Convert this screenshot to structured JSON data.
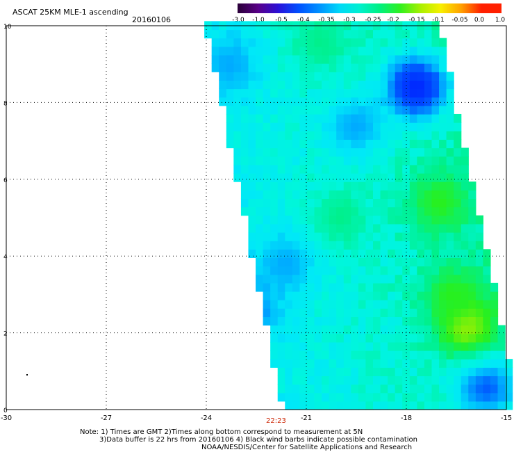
{
  "header": {
    "title": "ASCAT 25KM MLE-1 ascending",
    "date": "20160106"
  },
  "colorbar": {
    "labels": [
      "-3.0",
      "-1.0",
      "-0.5",
      "-0.4",
      "-0.35",
      "-0.3",
      "-0.25",
      "-0.2",
      "-0.15",
      "-0.1",
      "-0.05",
      "0.0",
      "1.0"
    ],
    "colors": [
      "#2a0038",
      "#5a0088",
      "#2a10d8",
      "#0050ff",
      "#0090ff",
      "#00d8f8",
      "#00f0d0",
      "#00f080",
      "#30f020",
      "#a8f000",
      "#f8f000",
      "#ffa000",
      "#ff2000"
    ]
  },
  "footer": {
    "time_label": "22:23",
    "time_color": "#cc2200",
    "note_line1": "Note: 1) Times are GMT 2)Times along bottom correspond to measurement at 5N",
    "note_line2": "3)Data buffer is 22 hrs from 20160106 4) Black wind barbs indicate possible contamination",
    "credit": "NOAA/NESDIS/Center for Satellite Applications and Research"
  },
  "chart_data": {
    "type": "heatmap",
    "x_ticks": [
      "-30",
      "-27",
      "-24",
      "-21",
      "-18",
      "-15"
    ],
    "y_ticks": [
      "0",
      "2",
      "4",
      "6",
      "8",
      "10"
    ],
    "xlim": [
      -30,
      -15
    ],
    "ylim": [
      0,
      10
    ],
    "swath": {
      "description_values": "MLE-1 values over an ascending swath",
      "top_edge_lon": [
        -24.0,
        -17.0
      ],
      "bottom_edge_lon": [
        -21.7,
        -14.6
      ],
      "dominant_value_range": [
        -0.35,
        -0.2
      ],
      "low_patches": [
        {
          "lon": -17.7,
          "lat": 8.4,
          "value": -0.5
        },
        {
          "lon": -22.8,
          "lat": 2.6,
          "value": -0.4
        },
        {
          "lon": -15.6,
          "lat": 0.6,
          "value": -0.4
        },
        {
          "lon": -23.3,
          "lat": 9.0,
          "value": -0.35
        },
        {
          "lon": -19.5,
          "lat": 7.4,
          "value": -0.35
        },
        {
          "lon": -21.6,
          "lat": 3.8,
          "value": -0.35
        }
      ],
      "high_patches": [
        {
          "lon": -17.0,
          "lat": 5.4,
          "value": -0.15
        },
        {
          "lon": -16.2,
          "lat": 2.2,
          "value": -0.1
        },
        {
          "lon": -16.6,
          "lat": 3.0,
          "value": -0.15
        },
        {
          "lon": -20.6,
          "lat": 9.6,
          "value": -0.2
        },
        {
          "lon": -20.0,
          "lat": 5.0,
          "value": -0.2
        }
      ]
    }
  }
}
